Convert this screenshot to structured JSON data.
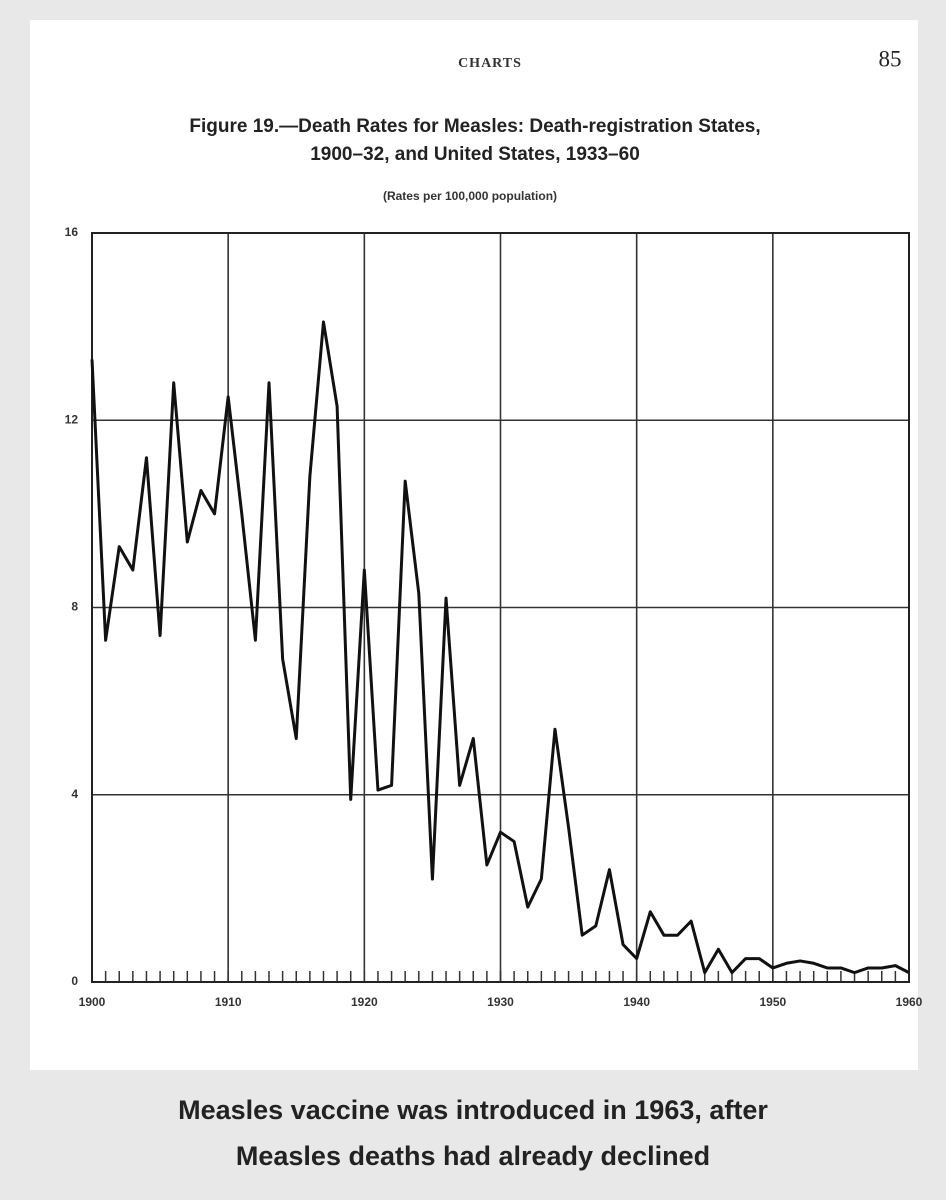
{
  "chart_data": {
    "type": "line",
    "header": "CHARTS",
    "page_number": "85",
    "title": [
      "Figure 19.—Death Rates for Measles: Death-registration States,",
      "1900–32, and United States, 1933–60"
    ],
    "subtitle": "(Rates per 100,000 population)",
    "x": [
      1900,
      1901,
      1902,
      1903,
      1904,
      1905,
      1906,
      1907,
      1908,
      1909,
      1910,
      1911,
      1912,
      1913,
      1914,
      1915,
      1916,
      1917,
      1918,
      1919,
      1920,
      1921,
      1922,
      1923,
      1924,
      1925,
      1926,
      1927,
      1928,
      1929,
      1930,
      1931,
      1932,
      1933,
      1934,
      1935,
      1936,
      1937,
      1938,
      1939,
      1940,
      1941,
      1942,
      1943,
      1944,
      1945,
      1946,
      1947,
      1948,
      1949,
      1950,
      1951,
      1952,
      1953,
      1954,
      1955,
      1956,
      1957,
      1958,
      1959,
      1960
    ],
    "values": [
      13.3,
      7.3,
      9.3,
      8.8,
      11.2,
      7.4,
      12.8,
      9.4,
      10.5,
      10.0,
      12.5,
      10.0,
      7.3,
      12.8,
      6.9,
      5.2,
      10.8,
      14.1,
      12.3,
      3.9,
      8.8,
      4.1,
      4.2,
      10.7,
      8.3,
      2.2,
      8.2,
      4.2,
      5.2,
      2.5,
      3.2,
      3.0,
      1.6,
      2.2,
      5.4,
      3.3,
      1.0,
      1.2,
      2.4,
      0.8,
      0.5,
      1.5,
      1.0,
      1.0,
      1.3,
      0.2,
      0.7,
      0.2,
      0.5,
      0.5,
      0.3,
      0.4,
      0.45,
      0.4,
      0.3,
      0.3,
      0.2,
      0.3,
      0.3,
      0.35,
      0.2
    ],
    "color": "#111111",
    "xlim": [
      1900,
      1960
    ],
    "xticks": [
      1900,
      1910,
      1920,
      1930,
      1940,
      1950,
      1960
    ],
    "ylim": [
      0,
      16
    ],
    "yticks": [
      0,
      4,
      8,
      12,
      16
    ],
    "grid": true
  },
  "caption": [
    "Measles vaccine was introduced in 1963, after",
    "Measles deaths had already declined"
  ]
}
